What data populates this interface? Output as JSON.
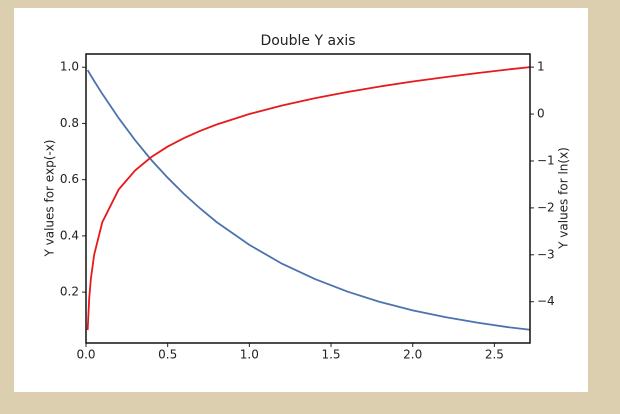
{
  "chart_data": {
    "type": "line",
    "title": "Double Y axis",
    "x": [
      0.01,
      0.02,
      0.03,
      0.05,
      0.1,
      0.2,
      0.3,
      0.4,
      0.5,
      0.6,
      0.7,
      0.8,
      1.0,
      1.2,
      1.4,
      1.6,
      1.8,
      2.0,
      2.2,
      2.4,
      2.6,
      2.718
    ],
    "series": [
      {
        "name": "exp(-x)",
        "color": "#4c72b0",
        "values": [
          0.99,
          0.98,
          0.97,
          0.951,
          0.905,
          0.819,
          0.741,
          0.67,
          0.607,
          0.549,
          0.497,
          0.449,
          0.368,
          0.301,
          0.247,
          0.202,
          0.165,
          0.135,
          0.111,
          0.091,
          0.074,
          0.066
        ]
      },
      {
        "name": "ln(x)",
        "color": "#e8191b",
        "axis": "y2",
        "values": [
          -4.605,
          -3.912,
          -3.507,
          -2.996,
          -2.303,
          -1.609,
          -1.204,
          -0.916,
          -0.693,
          -0.511,
          -0.357,
          -0.223,
          0,
          0.182,
          0.336,
          0.47,
          0.588,
          0.693,
          0.788,
          0.875,
          0.956,
          1.0
        ]
      }
    ],
    "y_label": "Y values for exp(-x)",
    "y2_label": "Y values for ln(x)",
    "xlim": [
      0,
      2.718
    ],
    "xticks": [
      {
        "value": 0,
        "label": "0.0"
      },
      0.5,
      {
        "value": 1,
        "label": "1.0"
      },
      1.5,
      {
        "value": 2,
        "label": "2.0"
      },
      2.5
    ],
    "ylim": [
      0.019,
      1.047
    ],
    "yticks": [
      0.2,
      0.4,
      0.6,
      0.8,
      {
        "value": 1,
        "label": "1.0"
      }
    ],
    "y2lim": [
      -4.88,
      1.28
    ],
    "y2ticks": [
      {
        "value": -4,
        "label": "−4"
      },
      {
        "value": -3,
        "label": "−3"
      },
      {
        "value": -2,
        "label": "−2"
      },
      {
        "value": -1,
        "label": "−1"
      },
      0,
      1
    ]
  }
}
